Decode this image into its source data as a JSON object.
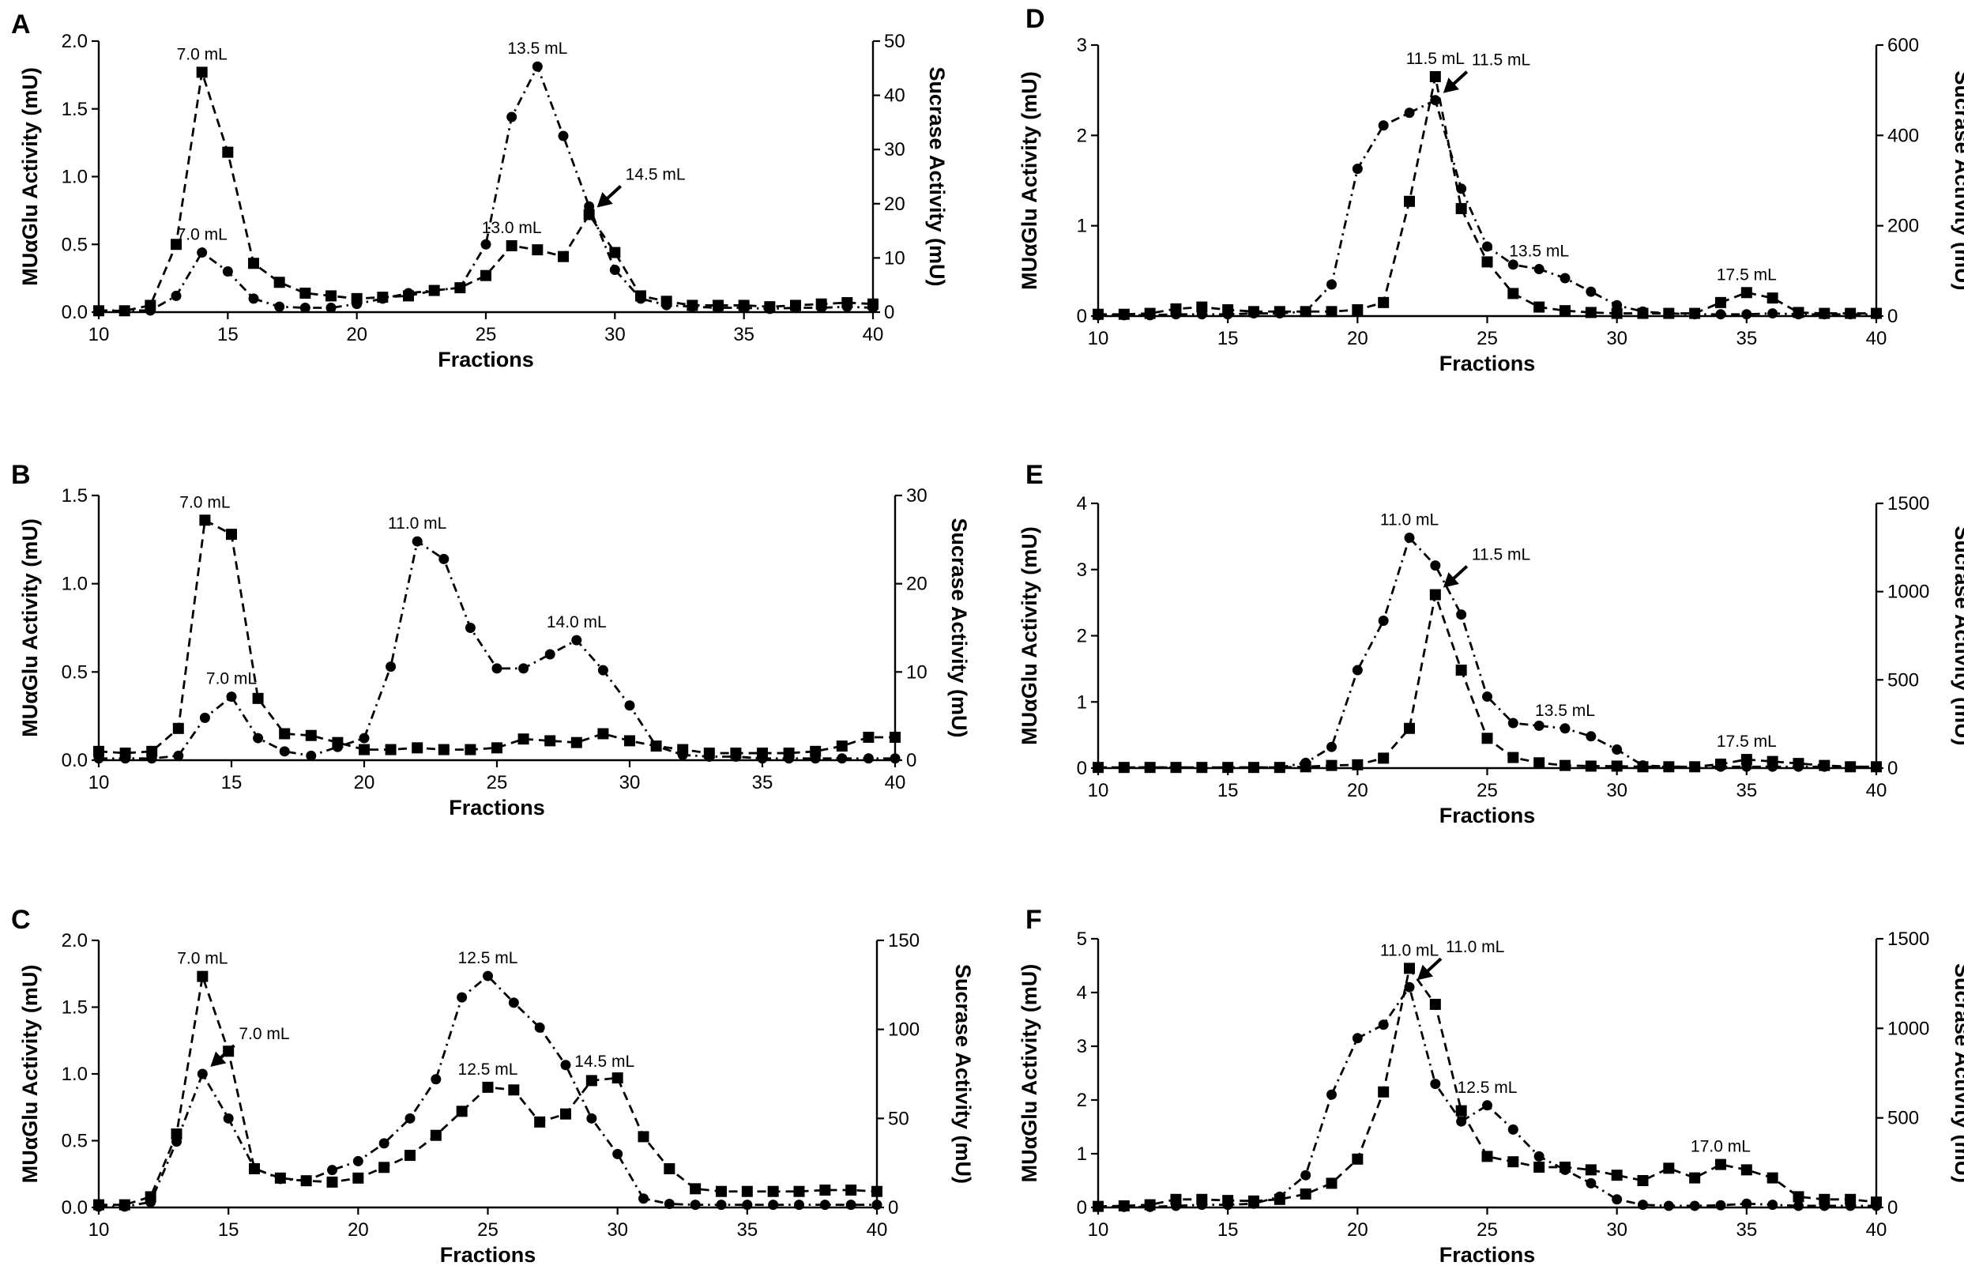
{
  "figure": {
    "panel_letters": [
      "A",
      "B",
      "C",
      "D",
      "E",
      "F"
    ]
  },
  "chart_data": [
    {
      "panel": "A",
      "type": "line",
      "xlabel": "Fractions",
      "ylabel_left": "MUαGlu Activity (mU)",
      "ylabel_right": "Sucrase Activity (mU)",
      "xlim": [
        10,
        40
      ],
      "xticks": [
        10,
        15,
        20,
        25,
        30,
        35,
        40
      ],
      "ylim_left": [
        0,
        2.0
      ],
      "yticks_left": [
        "0.0",
        "0.5",
        "1.0",
        "1.5",
        "2.0"
      ],
      "ylim_right": [
        0,
        50
      ],
      "yticks_right": [
        "0",
        "10",
        "20",
        "30",
        "40",
        "50"
      ],
      "x": [
        10,
        11,
        12,
        13,
        14,
        15,
        16,
        17,
        18,
        19,
        20,
        21,
        22,
        23,
        24,
        25,
        26,
        27,
        28,
        29,
        30,
        31,
        32,
        33,
        34,
        35,
        36,
        37,
        38,
        39,
        40
      ],
      "series": [
        {
          "name": "MUαGlu",
          "marker": "square",
          "axis": "left",
          "values": [
            0.01,
            0.01,
            0.05,
            0.5,
            1.77,
            1.18,
            0.36,
            0.22,
            0.14,
            0.12,
            0.1,
            0.11,
            0.12,
            0.16,
            0.18,
            0.27,
            0.49,
            0.46,
            0.41,
            0.72,
            0.44,
            0.12,
            0.08,
            0.05,
            0.05,
            0.05,
            0.04,
            0.05,
            0.06,
            0.07,
            0.06
          ]
        },
        {
          "name": "Sucrase",
          "marker": "circle",
          "axis": "right",
          "values": [
            0.3,
            0.3,
            0.3,
            3.0,
            11.0,
            7.5,
            2.5,
            1.0,
            0.8,
            0.8,
            1.5,
            2.5,
            3.5,
            4.0,
            4.5,
            12.5,
            36.0,
            45.3,
            32.5,
            19.5,
            7.8,
            2.5,
            1.3,
            1.0,
            0.8,
            0.8,
            0.6,
            0.8,
            0.8,
            1.0,
            0.8
          ]
        }
      ],
      "annotations": [
        {
          "text": "7.0 mL",
          "series": 0,
          "x": 14,
          "pos": "above"
        },
        {
          "text": "7.0 mL",
          "series": 1,
          "x": 14,
          "pos": "above"
        },
        {
          "text": "13.5 mL",
          "series": 1,
          "x": 27,
          "pos": "above"
        },
        {
          "text": "13.0 mL",
          "series": 0,
          "x": 26,
          "pos": "above"
        },
        {
          "text": "14.5 mL",
          "series": 0,
          "x": 29,
          "pos": "arrow"
        }
      ]
    },
    {
      "panel": "B",
      "type": "line",
      "xlabel": "Fractions",
      "ylabel_left": "MUαGlu Activity (mU)",
      "ylabel_right": "Sucrase Activity (mU)",
      "xlim": [
        10,
        40
      ],
      "xticks": [
        10,
        15,
        20,
        25,
        30,
        35,
        40
      ],
      "ylim_left": [
        0,
        1.5
      ],
      "yticks_left": [
        "0.0",
        "0.5",
        "1.0",
        "1.5"
      ],
      "ylim_right": [
        0,
        30
      ],
      "yticks_right": [
        "0",
        "10",
        "20",
        "30"
      ],
      "x": [
        10,
        11,
        12,
        13,
        14,
        15,
        16,
        17,
        18,
        19,
        20,
        21,
        22,
        23,
        24,
        25,
        26,
        27,
        28,
        29,
        30,
        31,
        32,
        33,
        34,
        35,
        36,
        37,
        38,
        39,
        40
      ],
      "series": [
        {
          "name": "MUαGlu",
          "marker": "square",
          "axis": "left",
          "values": [
            0.05,
            0.04,
            0.05,
            0.18,
            1.36,
            1.28,
            0.35,
            0.15,
            0.14,
            0.1,
            0.06,
            0.06,
            0.07,
            0.06,
            0.06,
            0.07,
            0.12,
            0.11,
            0.1,
            0.15,
            0.11,
            0.08,
            0.06,
            0.04,
            0.04,
            0.04,
            0.04,
            0.05,
            0.08,
            0.13,
            0.13
          ]
        },
        {
          "name": "Sucrase",
          "marker": "circle",
          "axis": "right",
          "values": [
            0.2,
            0.2,
            0.2,
            0.5,
            4.8,
            7.2,
            2.5,
            1.0,
            0.5,
            1.5,
            2.5,
            10.6,
            24.8,
            22.8,
            15.0,
            10.4,
            10.4,
            12.0,
            13.6,
            10.2,
            6.2,
            1.6,
            0.6,
            0.4,
            0.4,
            0.2,
            0.2,
            0.2,
            0.2,
            0.2,
            0.2
          ]
        }
      ],
      "annotations": [
        {
          "text": "7.0 mL",
          "series": 0,
          "x": 14,
          "pos": "above"
        },
        {
          "text": "7.0 mL",
          "series": 1,
          "x": 15,
          "pos": "above"
        },
        {
          "text": "11.0 mL",
          "series": 1,
          "x": 22,
          "pos": "above"
        },
        {
          "text": "14.0 mL",
          "series": 1,
          "x": 28,
          "pos": "above"
        }
      ]
    },
    {
      "panel": "C",
      "type": "line",
      "xlabel": "Fractions",
      "ylabel_left": "MUαGlu Activity (mU)",
      "ylabel_right": "Sucrase Activity (mU)",
      "xlim": [
        10,
        40
      ],
      "xticks": [
        10,
        15,
        20,
        25,
        30,
        35,
        40
      ],
      "ylim_left": [
        0,
        2.0
      ],
      "yticks_left": [
        "0.0",
        "0.5",
        "1.0",
        "1.5",
        "2.0"
      ],
      "ylim_right": [
        0,
        150
      ],
      "yticks_right": [
        "0",
        "50",
        "100",
        "150"
      ],
      "x": [
        10,
        11,
        12,
        13,
        14,
        15,
        16,
        17,
        18,
        19,
        20,
        21,
        22,
        23,
        24,
        25,
        26,
        27,
        28,
        29,
        30,
        31,
        32,
        33,
        34,
        35,
        36,
        37,
        38,
        39,
        40
      ],
      "series": [
        {
          "name": "MUαGlu",
          "marker": "square",
          "axis": "left",
          "values": [
            0.02,
            0.02,
            0.08,
            0.55,
            1.73,
            1.17,
            0.29,
            0.22,
            0.2,
            0.19,
            0.22,
            0.3,
            0.39,
            0.54,
            0.72,
            0.9,
            0.88,
            0.64,
            0.7,
            0.95,
            0.97,
            0.53,
            0.29,
            0.14,
            0.12,
            0.12,
            0.12,
            0.12,
            0.13,
            0.13,
            0.12
          ]
        },
        {
          "name": "Sucrase",
          "marker": "circle",
          "axis": "right",
          "values": [
            0.5,
            0.5,
            3.0,
            37.0,
            75.0,
            50.0,
            22.0,
            16.0,
            15.0,
            21.0,
            26.0,
            36.0,
            50.0,
            72.0,
            118.0,
            130.0,
            115.0,
            101.0,
            80.0,
            50.0,
            30.0,
            5.0,
            2.0,
            1.5,
            1.5,
            1.5,
            1.5,
            1.5,
            1.5,
            1.5,
            1.5
          ]
        }
      ],
      "annotations": [
        {
          "text": "7.0 mL",
          "series": 0,
          "x": 14,
          "pos": "above"
        },
        {
          "text": "7.0 mL",
          "series": 1,
          "x": 14,
          "pos": "arrow"
        },
        {
          "text": "12.5 mL",
          "series": 1,
          "x": 25,
          "pos": "above"
        },
        {
          "text": "12.5 mL",
          "series": 0,
          "x": 25,
          "pos": "above"
        },
        {
          "text": "14.5 mL",
          "series": 0,
          "x": 29.5,
          "pos": "above"
        }
      ]
    },
    {
      "panel": "D",
      "type": "line",
      "xlabel": "Fractions",
      "ylabel_left": "MUαGlu Activity (mU)",
      "ylabel_right": "Sucrase Activity (mU)",
      "xlim": [
        10,
        40
      ],
      "xticks": [
        10,
        15,
        20,
        25,
        30,
        35,
        40
      ],
      "ylim_left": [
        0,
        3
      ],
      "yticks_left": [
        "0",
        "1",
        "2",
        "3"
      ],
      "ylim_right": [
        0,
        600
      ],
      "yticks_right": [
        "0",
        "200",
        "400",
        "600"
      ],
      "x": [
        10,
        11,
        12,
        13,
        14,
        15,
        16,
        17,
        18,
        19,
        20,
        21,
        22,
        23,
        24,
        25,
        26,
        27,
        28,
        29,
        30,
        31,
        32,
        33,
        34,
        35,
        36,
        37,
        38,
        39,
        40
      ],
      "series": [
        {
          "name": "MUαGlu",
          "marker": "square",
          "axis": "left",
          "values": [
            0.02,
            0.02,
            0.03,
            0.08,
            0.1,
            0.07,
            0.05,
            0.05,
            0.05,
            0.05,
            0.07,
            0.15,
            1.27,
            2.65,
            1.19,
            0.6,
            0.25,
            0.1,
            0.06,
            0.04,
            0.03,
            0.03,
            0.03,
            0.03,
            0.15,
            0.26,
            0.2,
            0.04,
            0.03,
            0.03,
            0.03
          ]
        },
        {
          "name": "Sucrase",
          "marker": "circle",
          "axis": "right",
          "values": [
            2.0,
            2.0,
            2.0,
            4.0,
            4.0,
            4.0,
            6.0,
            6.0,
            10.0,
            70.0,
            326.0,
            422.0,
            450.0,
            478.0,
            282.0,
            154.0,
            114.0,
            104.0,
            84.0,
            54.0,
            24.0,
            10.0,
            6.0,
            4.0,
            4.0,
            4.0,
            6.0,
            4.0,
            4.0,
            4.0,
            4.0
          ]
        }
      ],
      "annotations": [
        {
          "text": "11.5 mL",
          "series": 0,
          "x": 23,
          "pos": "above"
        },
        {
          "text": "11.5 mL",
          "series": 1,
          "x": 23,
          "pos": "arrow"
        },
        {
          "text": "13.5 mL",
          "series": 1,
          "x": 27,
          "pos": "above"
        },
        {
          "text": "17.5 mL",
          "series": 0,
          "x": 35,
          "pos": "above"
        }
      ]
    },
    {
      "panel": "E",
      "type": "line",
      "xlabel": "Fractions",
      "ylabel_left": "MUαGlu Activity (mU)",
      "ylabel_right": "Sucrase Activity (mU)",
      "xlim": [
        10,
        40
      ],
      "xticks": [
        10,
        15,
        20,
        25,
        30,
        35,
        40
      ],
      "ylim_left": [
        0,
        4
      ],
      "yticks_left": [
        "0",
        "1",
        "2",
        "3",
        "4"
      ],
      "ylim_right": [
        0,
        1500
      ],
      "yticks_right": [
        "0",
        "500",
        "1000",
        "1500"
      ],
      "x": [
        10,
        11,
        12,
        13,
        14,
        15,
        16,
        17,
        18,
        19,
        20,
        21,
        22,
        23,
        24,
        25,
        26,
        27,
        28,
        29,
        30,
        31,
        32,
        33,
        34,
        35,
        36,
        37,
        38,
        39,
        40
      ],
      "series": [
        {
          "name": "MUαGlu",
          "marker": "square",
          "axis": "left",
          "values": [
            0.01,
            0.01,
            0.01,
            0.01,
            0.01,
            0.01,
            0.01,
            0.01,
            0.02,
            0.04,
            0.05,
            0.15,
            0.6,
            2.62,
            1.48,
            0.45,
            0.16,
            0.08,
            0.04,
            0.03,
            0.03,
            0.02,
            0.02,
            0.02,
            0.06,
            0.13,
            0.1,
            0.07,
            0.04,
            0.02,
            0.02
          ]
        },
        {
          "name": "Sucrase",
          "marker": "circle",
          "axis": "right",
          "values": [
            4.0,
            4.0,
            4.0,
            4.0,
            4.0,
            4.0,
            4.0,
            4.0,
            30.0,
            120.0,
            555.0,
            835.0,
            1305.0,
            1148.0,
            870.0,
            405.0,
            255.0,
            240.0,
            225.0,
            180.0,
            105.0,
            15.0,
            8.0,
            8.0,
            8.0,
            8.0,
            8.0,
            8.0,
            8.0,
            8.0,
            8.0
          ]
        }
      ],
      "annotations": [
        {
          "text": "11.0 mL",
          "series": 1,
          "x": 22,
          "pos": "above"
        },
        {
          "text": "11.5 mL",
          "series": 0,
          "x": 23,
          "pos": "arrow"
        },
        {
          "text": "13.5 mL",
          "series": 1,
          "x": 28,
          "pos": "above"
        },
        {
          "text": "17.5 mL",
          "series": 0,
          "x": 35,
          "pos": "above"
        }
      ]
    },
    {
      "panel": "F",
      "type": "line",
      "xlabel": "Fractions",
      "ylabel_left": "MUαGlu Activity (mU)",
      "ylabel_right": "Sucrase Activity (mU)",
      "xlim": [
        10,
        40
      ],
      "xticks": [
        10,
        15,
        20,
        25,
        30,
        35,
        40
      ],
      "ylim_left": [
        0,
        5
      ],
      "yticks_left": [
        "0",
        "1",
        "2",
        "3",
        "4",
        "5"
      ],
      "ylim_right": [
        0,
        1500
      ],
      "yticks_right": [
        "0",
        "500",
        "1000",
        "1500"
      ],
      "x": [
        10,
        11,
        12,
        13,
        14,
        15,
        16,
        17,
        18,
        19,
        20,
        21,
        22,
        23,
        24,
        25,
        26,
        27,
        28,
        29,
        30,
        31,
        32,
        33,
        34,
        35,
        36,
        37,
        38,
        39,
        40
      ],
      "series": [
        {
          "name": "MUαGlu",
          "marker": "square",
          "axis": "left",
          "values": [
            0.02,
            0.03,
            0.05,
            0.15,
            0.15,
            0.13,
            0.12,
            0.15,
            0.25,
            0.45,
            0.9,
            2.15,
            4.45,
            3.78,
            1.8,
            0.95,
            0.85,
            0.75,
            0.75,
            0.7,
            0.6,
            0.5,
            0.73,
            0.55,
            0.8,
            0.7,
            0.55,
            0.2,
            0.15,
            0.15,
            0.1
          ]
        },
        {
          "name": "Sucrase",
          "marker": "circle",
          "axis": "right",
          "values": [
            3.0,
            3.0,
            3.0,
            9.0,
            15.0,
            15.0,
            21.0,
            60.0,
            180.0,
            630.0,
            945.0,
            1020.0,
            1230.0,
            690.0,
            480.0,
            570.0,
            435.0,
            285.0,
            210.0,
            135.0,
            45.0,
            15.0,
            9.0,
            9.0,
            12.0,
            21.0,
            15.0,
            9.0,
            9.0,
            9.0,
            9.0
          ]
        }
      ],
      "annotations": [
        {
          "text": "11.0 mL",
          "series": 0,
          "x": 22,
          "pos": "above"
        },
        {
          "text": "11.0 mL",
          "series": 1,
          "x": 22,
          "pos": "arrow"
        },
        {
          "text": "12.5 mL",
          "series": 1,
          "x": 25,
          "pos": "above"
        },
        {
          "text": "17.0 mL",
          "series": 0,
          "x": 34,
          "pos": "above"
        }
      ]
    }
  ]
}
